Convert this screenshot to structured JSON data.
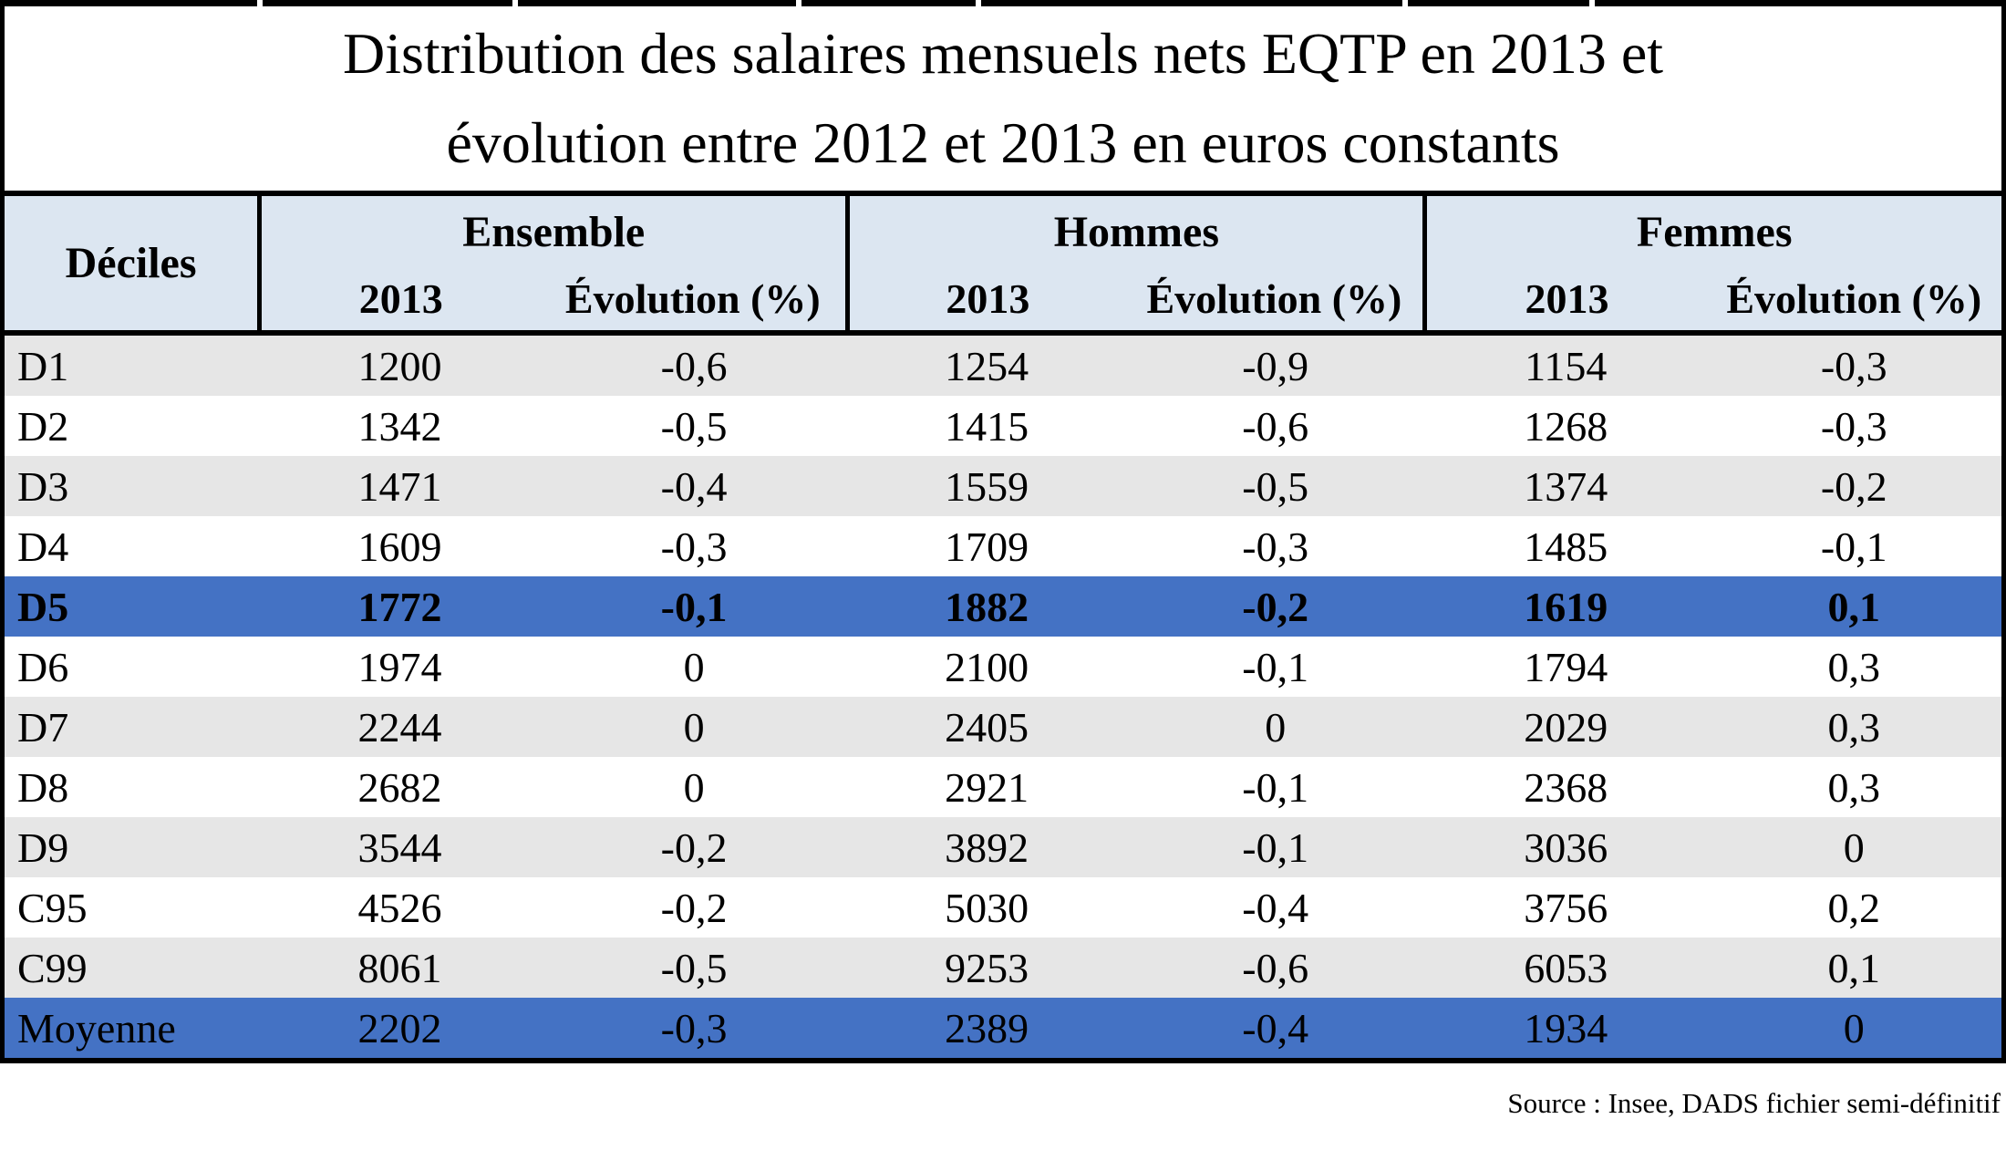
{
  "title": {
    "line1": "Distribution des salaires mensuels nets EQTP en 2013 et",
    "line2": "évolution entre 2012 et 2013 en euros constants"
  },
  "table": {
    "corner_header": "Déciles",
    "groups": [
      {
        "label": "Ensemble",
        "sub": [
          "2013",
          "Évolution (%)"
        ]
      },
      {
        "label": "Hommes",
        "sub": [
          "2013",
          "Évolution (%)"
        ]
      },
      {
        "label": "Femmes",
        "sub": [
          "2013",
          "Évolution (%)"
        ]
      }
    ],
    "rows": [
      {
        "decile": "D1",
        "values": [
          "1200",
          "-0,6",
          "1254",
          "-0,9",
          "1154",
          "-0,3"
        ],
        "variant": "gray",
        "bold": false
      },
      {
        "decile": "D2",
        "values": [
          "1342",
          "-0,5",
          "1415",
          "-0,6",
          "1268",
          "-0,3"
        ],
        "variant": "white",
        "bold": false
      },
      {
        "decile": "D3",
        "values": [
          "1471",
          "-0,4",
          "1559",
          "-0,5",
          "1374",
          "-0,2"
        ],
        "variant": "gray",
        "bold": false
      },
      {
        "decile": "D4",
        "values": [
          "1609",
          "-0,3",
          "1709",
          "-0,3",
          "1485",
          "-0,1"
        ],
        "variant": "white",
        "bold": false
      },
      {
        "decile": "D5",
        "values": [
          "1772",
          "-0,1",
          "1882",
          "-0,2",
          "1619",
          "0,1"
        ],
        "variant": "highlight",
        "bold": true
      },
      {
        "decile": "D6",
        "values": [
          "1974",
          "0",
          "2100",
          "-0,1",
          "1794",
          "0,3"
        ],
        "variant": "white",
        "bold": false
      },
      {
        "decile": "D7",
        "values": [
          "2244",
          "0",
          "2405",
          "0",
          "2029",
          "0,3"
        ],
        "variant": "gray",
        "bold": false
      },
      {
        "decile": "D8",
        "values": [
          "2682",
          "0",
          "2921",
          "-0,1",
          "2368",
          "0,3"
        ],
        "variant": "white",
        "bold": false
      },
      {
        "decile": "D9",
        "values": [
          "3544",
          "-0,2",
          "3892",
          "-0,1",
          "3036",
          "0"
        ],
        "variant": "gray",
        "bold": false
      },
      {
        "decile": "C95",
        "values": [
          "4526",
          "-0,2",
          "5030",
          "-0,4",
          "3756",
          "0,2"
        ],
        "variant": "white",
        "bold": false
      },
      {
        "decile": "C99",
        "values": [
          "8061",
          "-0,5",
          "9253",
          "-0,6",
          "6053",
          "0,1"
        ],
        "variant": "gray",
        "bold": false
      },
      {
        "decile": "Moyenne",
        "values": [
          "2202",
          "-0,3",
          "2389",
          "-0,4",
          "1934",
          "0"
        ],
        "variant": "highlight",
        "bold": false
      }
    ]
  },
  "source": "Source : Insee, DADS fichier semi-définitif",
  "colors": {
    "highlight_blue": "#4472c4",
    "header_blue": "#dce6f1",
    "row_gray": "#e6e6e6",
    "row_white": "#ffffff",
    "border_black": "#000000"
  },
  "chart_data": {
    "type": "table",
    "title": "Distribution des salaires mensuels nets EQTP en 2013 et évolution entre 2012 et 2013 en euros constants",
    "column_groups": [
      "Ensemble",
      "Hommes",
      "Femmes"
    ],
    "columns": [
      "Déciles",
      "Ensemble 2013",
      "Ensemble Évolution (%)",
      "Hommes 2013",
      "Hommes Évolution (%)",
      "Femmes 2013",
      "Femmes Évolution (%)"
    ],
    "rows": [
      [
        "D1",
        1200,
        -0.6,
        1254,
        -0.9,
        1154,
        -0.3
      ],
      [
        "D2",
        1342,
        -0.5,
        1415,
        -0.6,
        1268,
        -0.3
      ],
      [
        "D3",
        1471,
        -0.4,
        1559,
        -0.5,
        1374,
        -0.2
      ],
      [
        "D4",
        1609,
        -0.3,
        1709,
        -0.3,
        1485,
        -0.1
      ],
      [
        "D5",
        1772,
        -0.1,
        1882,
        -0.2,
        1619,
        0.1
      ],
      [
        "D6",
        1974,
        0,
        2100,
        -0.1,
        1794,
        0.3
      ],
      [
        "D7",
        2244,
        0,
        2405,
        0,
        2029,
        0.3
      ],
      [
        "D8",
        2682,
        0,
        2921,
        -0.1,
        2368,
        0.3
      ],
      [
        "D9",
        3544,
        -0.2,
        3892,
        -0.1,
        3036,
        0
      ],
      [
        "C95",
        4526,
        -0.2,
        5030,
        -0.4,
        3756,
        0.2
      ],
      [
        "C99",
        8061,
        -0.5,
        9253,
        -0.6,
        6053,
        0.1
      ],
      [
        "Moyenne",
        2202,
        -0.3,
        2389,
        -0.4,
        1934,
        0
      ]
    ],
    "highlighted_rows": [
      "D5",
      "Moyenne"
    ],
    "source": "Source : Insee, DADS fichier semi-définitif"
  }
}
